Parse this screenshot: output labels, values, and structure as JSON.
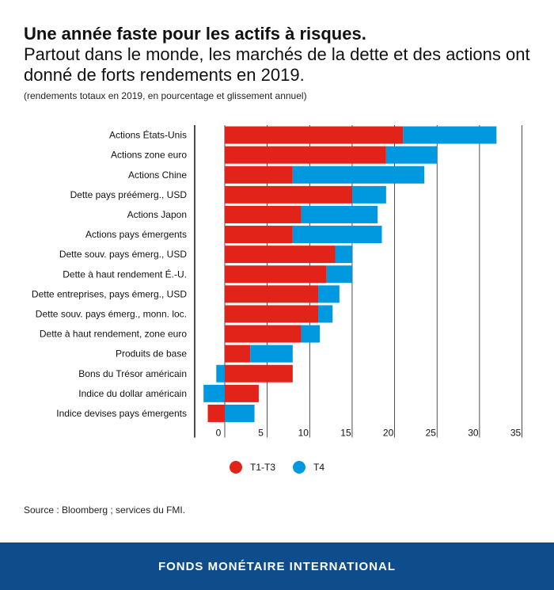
{
  "header": {
    "title": "Une année faste pour les actifs à risques.",
    "subtitle": "Partout dans le monde, les marchés de la dette et des actions ont donné de forts rendements en 2019.",
    "note": "(rendements totaux en 2019, en pourcentage et glissement annuel)"
  },
  "legend": {
    "t1t3": "T1-T3",
    "t4": "T4"
  },
  "colors": {
    "t1t3": "#e2231a",
    "t4": "#0099e0"
  },
  "source": "Source : Bloomberg ; services du FMI.",
  "footer": "FONDS MONÉTAIRE INTERNATIONAL",
  "chart_data": {
    "type": "bar",
    "orientation": "horizontal",
    "stacked": true,
    "categories": [
      "Actions États-Unis",
      "Actions zone euro",
      "Actions Chine",
      "Dette pays préémerg., USD",
      "Actions Japon",
      "Actions pays émergents",
      "Dette souv. pays émerg., USD",
      "Dette à haut rendement É.-U.",
      "Dette entreprises, pays émerg., USD",
      "Dette souv. pays émerg., monn. loc.",
      "Dette à haut rendement, zone euro",
      "Produits de base",
      "Bons du Trésor américain",
      "Indice du dollar américain",
      "Indice devises pays émergents"
    ],
    "series": [
      {
        "name": "T1-T3",
        "values": [
          21.0,
          19.0,
          8.0,
          15.0,
          9.0,
          8.0,
          13.0,
          12.0,
          11.0,
          11.0,
          9.0,
          3.0,
          8.0,
          4.0,
          -2.0
        ]
      },
      {
        "name": "T4",
        "values": [
          11.0,
          6.0,
          15.5,
          4.0,
          9.0,
          10.5,
          2.0,
          3.0,
          2.5,
          1.7,
          2.2,
          5.0,
          -1.0,
          -2.5,
          3.5
        ]
      }
    ],
    "xticks": [
      "0",
      "5",
      "10",
      "15",
      "20",
      "25",
      "30",
      "35"
    ],
    "xlim": [
      -3.5,
      35
    ],
    "grid": true,
    "legend_position": "bottom"
  }
}
